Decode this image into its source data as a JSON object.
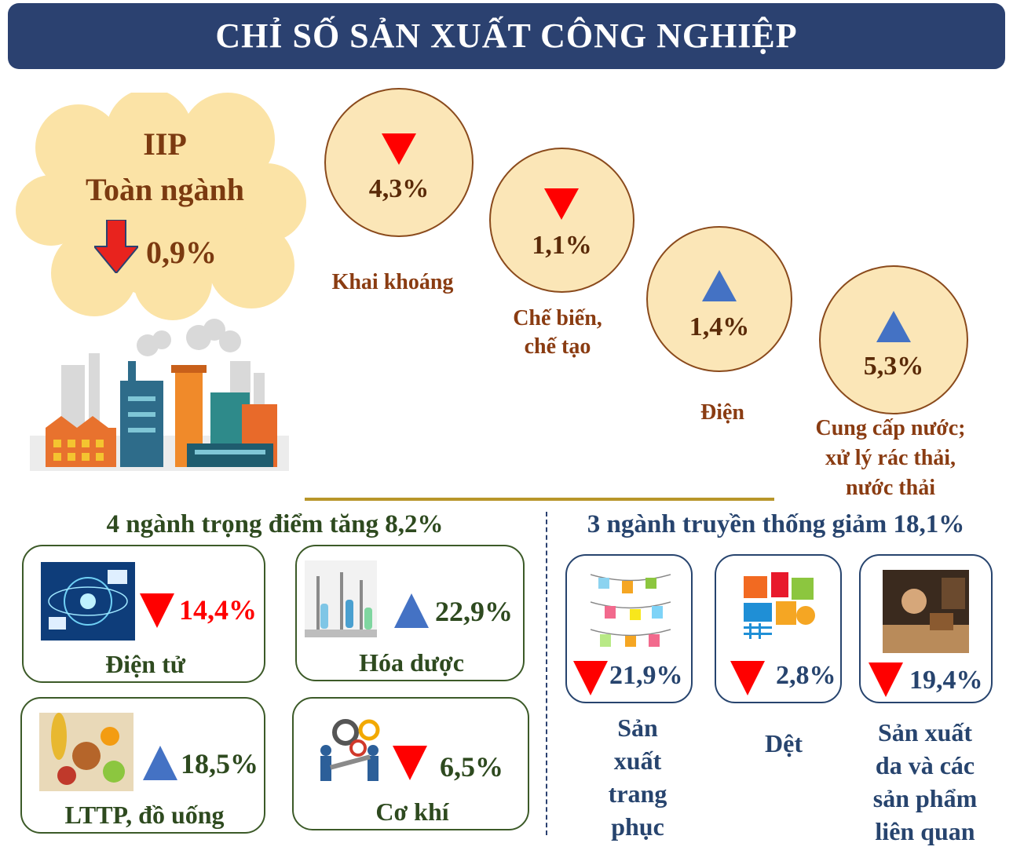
{
  "title": "CHỈ SỐ SẢN XUẤT CÔNG NGHIỆP",
  "overall": {
    "line1": "IIP",
    "line2": "Toàn ngành",
    "value": "0,9%",
    "direction": "down"
  },
  "sectors": [
    {
      "name": "Khai khoáng",
      "value": "4,3%",
      "direction": "down"
    },
    {
      "name_line1": "Chế biến,",
      "name_line2": "chế tạo",
      "value": "1,1%",
      "direction": "down"
    },
    {
      "name": "Điện",
      "value": "1,4%",
      "direction": "up"
    },
    {
      "name_line1": "Cung cấp nước;",
      "name_line2": "xử lý rác thải,",
      "name_line3": "nước thải",
      "value": "5,3%",
      "direction": "up"
    }
  ],
  "key_industries": {
    "heading": "4 ngành trọng điểm tăng 8,2%",
    "items": [
      {
        "name": "Điện tử",
        "value": "14,4%",
        "direction": "down",
        "icon": "electronics-icon"
      },
      {
        "name": "Hóa dược",
        "value": "22,9%",
        "direction": "up",
        "icon": "chemistry-icon"
      },
      {
        "name": "LTTP, đồ uống",
        "value": "18,5%",
        "direction": "up",
        "icon": "food-icon"
      },
      {
        "name": "Cơ khí",
        "value": "6,5%",
        "direction": "down",
        "icon": "mechanical-icon"
      }
    ]
  },
  "traditional_industries": {
    "heading": "3 ngành truyền thống giảm 18,1%",
    "items": [
      {
        "name_lines": [
          "Sản",
          "xuất",
          "trang",
          "phục"
        ],
        "value": "21,9%",
        "direction": "down",
        "icon": "clothing-icon"
      },
      {
        "name_lines": [
          "Dệt"
        ],
        "value": "2,8%",
        "direction": "down",
        "icon": "textile-icon"
      },
      {
        "name_lines": [
          "Sản xuất",
          "da và các",
          "sản phẩm",
          "liên quan"
        ],
        "value": "19,4%",
        "direction": "down",
        "icon": "leather-icon"
      }
    ]
  },
  "colors": {
    "title_bg": "#2b4170",
    "down": "#ff0000",
    "up": "#4472c4",
    "circle_fill": "#fbe6b7",
    "cloud": "#fbe3a6",
    "divider": "#b8962a"
  }
}
